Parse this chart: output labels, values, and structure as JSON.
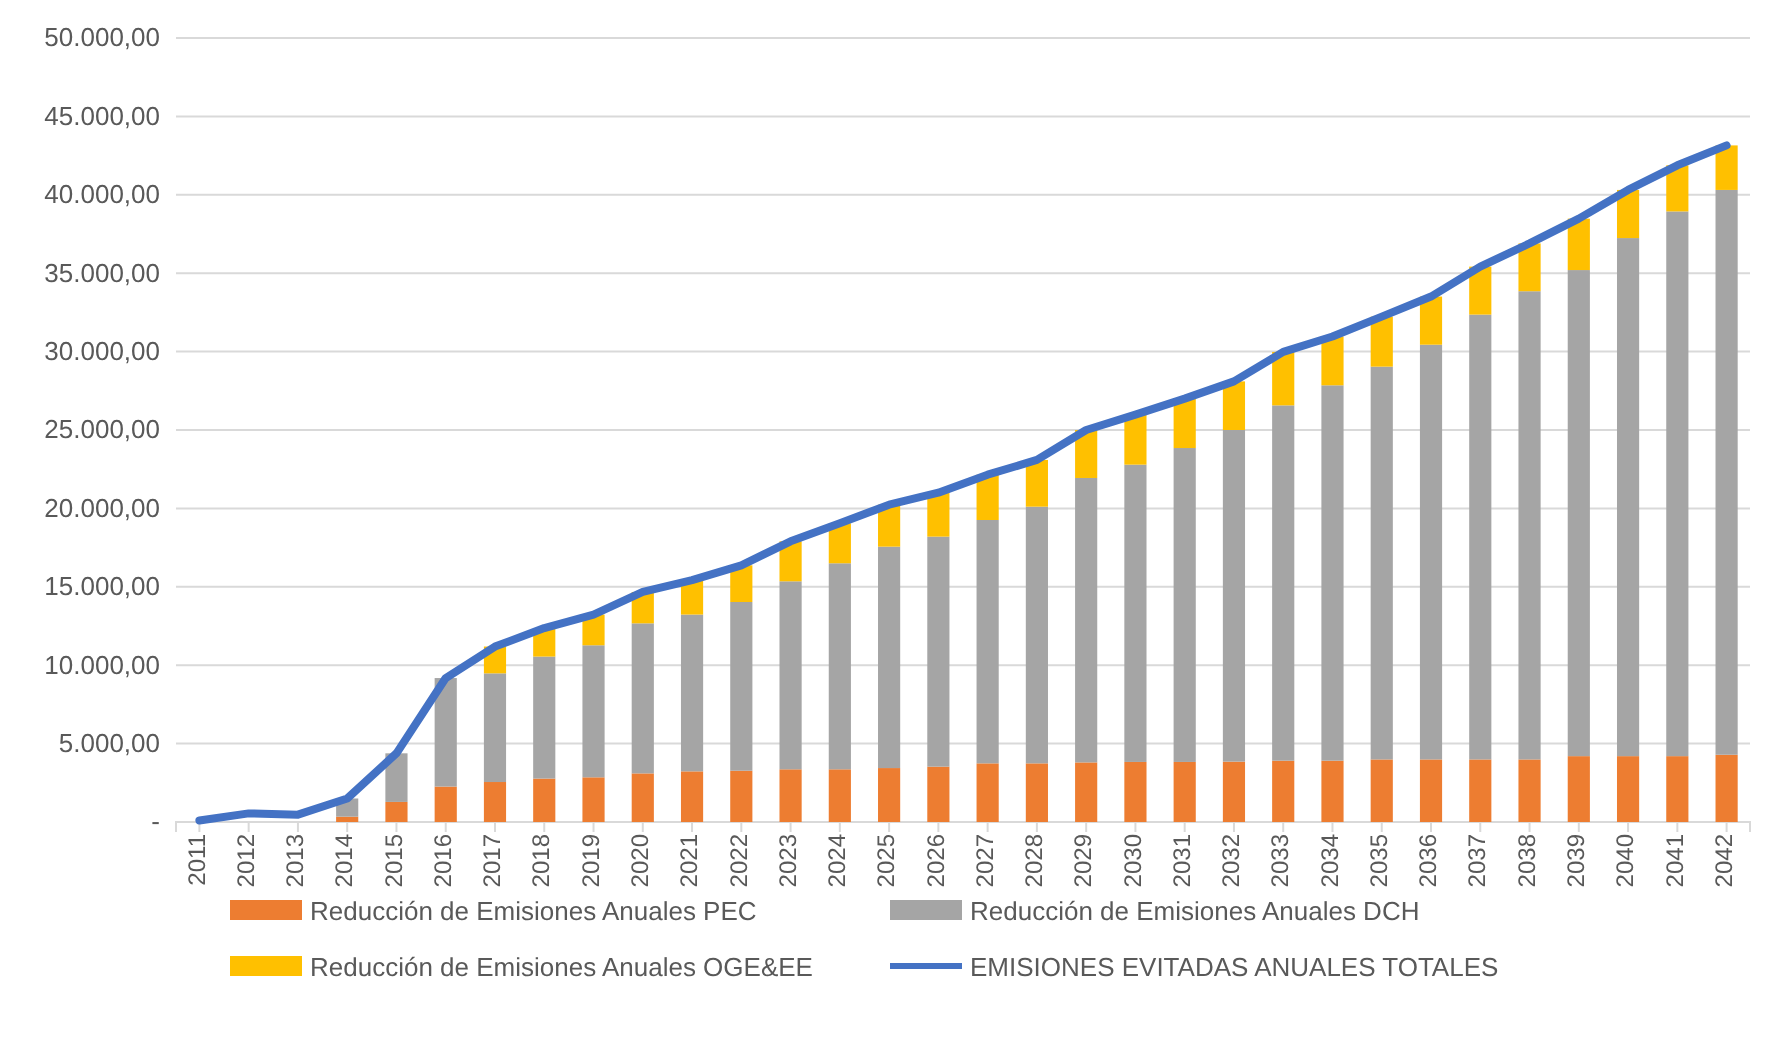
{
  "chart_data": {
    "type": "bar",
    "stacked": true,
    "categories": [
      "2011",
      "2012",
      "2013",
      "2014",
      "2015",
      "2016",
      "2017",
      "2018",
      "2019",
      "2020",
      "2021",
      "2022",
      "2023",
      "2024",
      "2025",
      "2026",
      "2027",
      "2028",
      "2029",
      "2030",
      "2031",
      "2032",
      "2033",
      "2034",
      "2035",
      "2036",
      "2037",
      "2038",
      "2039",
      "2040",
      "2041",
      "2042"
    ],
    "series": [
      {
        "name": "Reducción de Emisiones Anuales PEC",
        "color": "#ed7d31",
        "values": [
          0,
          0,
          0,
          340,
          1280,
          2260,
          2550,
          2770,
          2850,
          3100,
          3230,
          3270,
          3360,
          3360,
          3440,
          3530,
          3740,
          3740,
          3800,
          3830,
          3830,
          3850,
          3910,
          3910,
          3990,
          3990,
          3990,
          3990,
          4200,
          4200,
          4200,
          4290
        ]
      },
      {
        "name": "Reducción de Emisiones Anuales  DCH",
        "color": "#a5a5a5",
        "values": [
          0,
          0,
          0,
          1160,
          3100,
          6920,
          6930,
          7780,
          8420,
          9570,
          10000,
          10760,
          11990,
          13140,
          14120,
          14670,
          15520,
          16370,
          18140,
          18960,
          20020,
          21150,
          22660,
          23940,
          25050,
          26450,
          28370,
          29860,
          31000,
          33040,
          34740,
          36020
        ]
      },
      {
        "name": "Reducción de Emisiones Anuales  OGE&EE",
        "color": "#ffc000",
        "values": [
          0,
          0,
          0,
          0,
          0,
          0,
          1710,
          1820,
          1960,
          2000,
          2200,
          2340,
          2550,
          2550,
          2680,
          2800,
          2890,
          2980,
          3060,
          3190,
          3150,
          3100,
          3410,
          3110,
          3190,
          3070,
          3060,
          3050,
          3280,
          3070,
          2940,
          2840
        ]
      },
      {
        "name": "EMISIONES EVITADAS ANUALES TOTALES",
        "type": "line",
        "color": "#4472c4",
        "values": [
          100,
          550,
          470,
          1500,
          4380,
          9180,
          11190,
          12370,
          13230,
          14670,
          15430,
          16370,
          17900,
          19050,
          20240,
          21000,
          22150,
          23090,
          25000,
          25980,
          27000,
          28100,
          29980,
          30960,
          32230,
          33510,
          35420,
          36900,
          38480,
          40310,
          41880,
          43150
        ]
      }
    ],
    "ylim": [
      0,
      50000
    ],
    "yticks": [
      {
        "value": 0,
        "label": "-"
      },
      {
        "value": 5000,
        "label": "5.000,00"
      },
      {
        "value": 10000,
        "label": "10.000,00"
      },
      {
        "value": 15000,
        "label": "15.000,00"
      },
      {
        "value": 20000,
        "label": "20.000,00"
      },
      {
        "value": 25000,
        "label": "25.000,00"
      },
      {
        "value": 30000,
        "label": "30.000,00"
      },
      {
        "value": 35000,
        "label": "35.000,00"
      },
      {
        "value": 40000,
        "label": "40.000,00"
      },
      {
        "value": 45000,
        "label": "45.000,00"
      },
      {
        "value": 50000,
        "label": "50.000,00"
      }
    ],
    "grid": "y",
    "legend": "bottom"
  }
}
